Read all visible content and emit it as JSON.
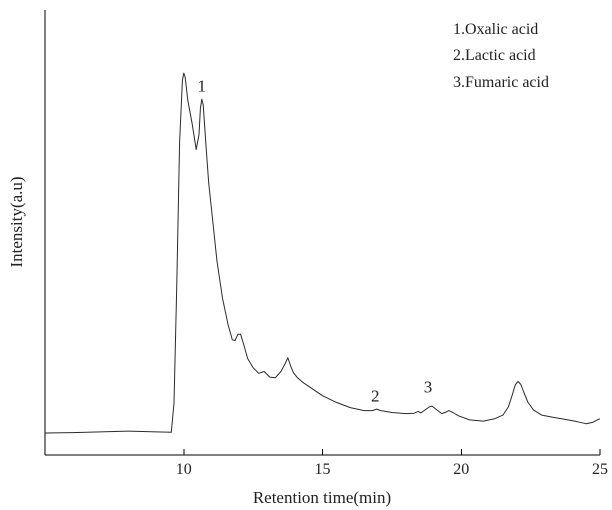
{
  "chart_data": {
    "type": "line",
    "title": "",
    "xlabel": "Retention time(min)",
    "ylabel": "Intensity(a.u)",
    "xlim": [
      5,
      25
    ],
    "ylim": [
      0,
      100
    ],
    "x_ticks": [
      10,
      15,
      20,
      25
    ],
    "x_tick_labels": [
      "10",
      "15",
      "20",
      "25"
    ],
    "y_tick_labels_shown": false,
    "grid": false,
    "legend": {
      "position": "top-right",
      "entries": [
        "1.Oxalic acid",
        "2.Lactic acid",
        "3.Fumaric acid"
      ]
    },
    "annotations": [
      {
        "text": "1",
        "x": 10.65,
        "y": 91.5
      },
      {
        "text": "2",
        "x": 16.9,
        "y": 8.5
      },
      {
        "text": "3",
        "x": 18.8,
        "y": 10.8
      }
    ],
    "series": [
      {
        "x": [
          5.0,
          6.0,
          7.0,
          8.0,
          9.0,
          9.55,
          9.65,
          9.75,
          9.85,
          9.95,
          10.0,
          10.05,
          10.15,
          10.3,
          10.45,
          10.55,
          10.6,
          10.65,
          10.7,
          10.8,
          10.9,
          11.0,
          11.2,
          11.4,
          11.6,
          11.75,
          11.85,
          11.95,
          12.05,
          12.15,
          12.3,
          12.5,
          12.7,
          12.9,
          13.1,
          13.3,
          13.5,
          13.65,
          13.75,
          13.85,
          13.95,
          14.1,
          14.3,
          14.6,
          15.0,
          15.5,
          16.0,
          16.5,
          16.8,
          16.95,
          17.1,
          17.5,
          18.0,
          18.3,
          18.45,
          18.55,
          18.7,
          18.85,
          18.95,
          19.1,
          19.3,
          19.45,
          19.55,
          19.7,
          19.9,
          20.3,
          20.8,
          21.2,
          21.5,
          21.7,
          21.85,
          21.95,
          22.05,
          22.15,
          22.25,
          22.4,
          22.6,
          22.9,
          23.3,
          23.8,
          24.2,
          24.5,
          24.75,
          24.9,
          25.0
        ],
        "y": [
          0.0,
          0.1,
          0.3,
          0.5,
          0.3,
          0.2,
          8.0,
          40.0,
          78.0,
          94.5,
          96.5,
          95.5,
          89.0,
          83.0,
          76.0,
          80.0,
          87.0,
          89.5,
          88.0,
          77.0,
          67.0,
          60.0,
          46.0,
          36.0,
          29.0,
          25.0,
          24.8,
          26.5,
          26.5,
          24.0,
          20.0,
          17.5,
          16.0,
          16.5,
          15.0,
          14.8,
          16.5,
          18.5,
          20.2,
          18.0,
          16.2,
          14.8,
          13.5,
          12.0,
          10.0,
          8.2,
          6.8,
          6.0,
          6.0,
          6.4,
          6.0,
          5.5,
          5.2,
          5.3,
          5.8,
          5.4,
          6.2,
          7.0,
          7.2,
          6.3,
          5.2,
          5.6,
          6.0,
          5.5,
          4.6,
          3.5,
          3.2,
          3.8,
          4.8,
          7.0,
          10.5,
          13.0,
          13.8,
          13.0,
          11.0,
          8.3,
          6.2,
          4.8,
          4.2,
          3.6,
          3.0,
          2.5,
          2.9,
          3.5,
          3.8
        ]
      }
    ]
  }
}
